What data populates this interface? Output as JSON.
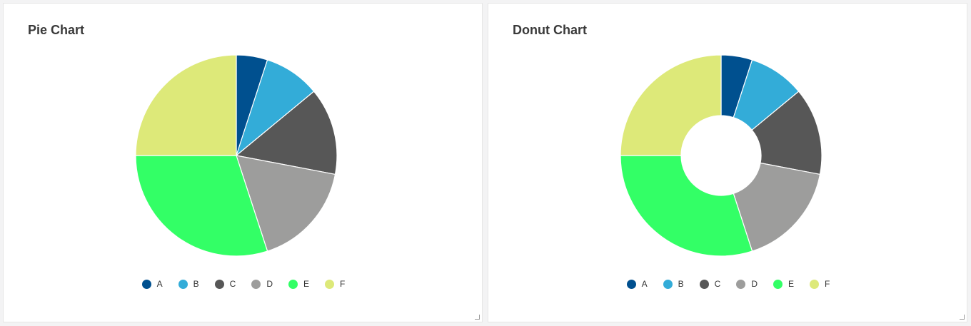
{
  "chart_data": [
    {
      "type": "pie",
      "title": "Pie Chart",
      "categories": [
        "A",
        "B",
        "C",
        "D",
        "E",
        "F"
      ],
      "values": [
        5,
        9,
        14,
        17,
        30,
        25
      ],
      "colors": [
        "#00508f",
        "#33acd8",
        "#575757",
        "#9d9d9c",
        "#33ff66",
        "#dde979"
      ],
      "legend_position": "bottom"
    },
    {
      "type": "donut",
      "title": "Donut Chart",
      "categories": [
        "A",
        "B",
        "C",
        "D",
        "E",
        "F"
      ],
      "values": [
        5,
        9,
        14,
        17,
        30,
        25
      ],
      "colors": [
        "#00508f",
        "#33acd8",
        "#575757",
        "#9d9d9c",
        "#33ff66",
        "#dde979"
      ],
      "legend_position": "bottom"
    }
  ]
}
